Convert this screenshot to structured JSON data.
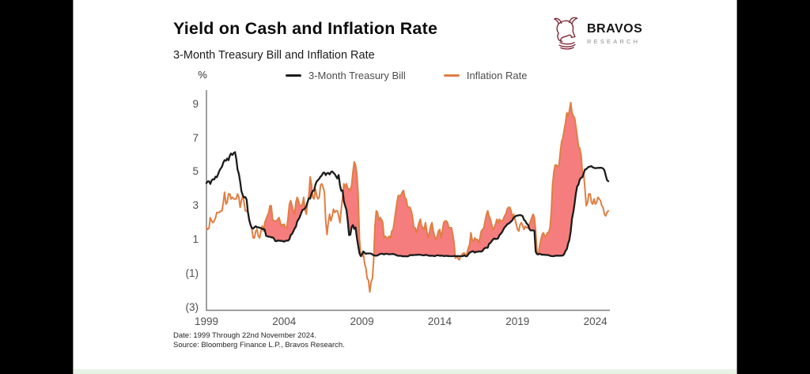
{
  "window": {
    "background": "#000000",
    "slide_background": "#ffffff",
    "bottom_strip_color": "#e9f3e8",
    "edge_line_color": "#9a9a9a"
  },
  "logo": {
    "brand": "BRAVOS",
    "brand_sub": "RESEARCH",
    "icon": "bull-knight-icon",
    "icon_color": "#7e2331",
    "brand_color": "#161616",
    "brand_sub_color": "#8f8f8f"
  },
  "footer": {
    "date_note": "Date: 1999 Through 22nd November 2024.",
    "source_note": "Source: Bloomberg Finance L.P., Bravos Research."
  },
  "chart_data": {
    "type": "line",
    "title": "Yield on Cash and Inflation Rate",
    "subtitle": "3-Month Treasury Bill and Inflation Rate",
    "unit_label": "%",
    "x_start_year": 1999,
    "x_monthly_from": "1999-01",
    "x_monthly_to": "2024-11",
    "x_ticks": [
      1999,
      2004,
      2009,
      2014,
      2019,
      2024
    ],
    "y_ticks": [
      9,
      7,
      5,
      3,
      1,
      -1,
      -3
    ],
    "y_tick_labels": [
      "9",
      "7",
      "5",
      "3",
      "1",
      "(1)",
      "(3)"
    ],
    "ylim": [
      -3.3,
      9.9
    ],
    "grid": "off",
    "legend_position": "top",
    "axis_color": "#878787",
    "tick_color": "#4f4f4f",
    "fill": {
      "rule": "inflation_above_tbill",
      "color": "#f67d7d"
    },
    "series": [
      {
        "name": "3-Month Treasury Bill",
        "color": "#1c1c1c",
        "values": [
          4.34,
          4.44,
          4.44,
          4.29,
          4.5,
          4.57,
          4.55,
          4.72,
          4.68,
          4.86,
          5.07,
          5.2,
          5.32,
          5.55,
          5.69,
          5.66,
          5.79,
          5.69,
          5.96,
          6.09,
          6.0,
          6.11,
          6.17,
          5.77,
          5.15,
          4.88,
          4.42,
          3.87,
          3.62,
          3.49,
          3.51,
          3.36,
          2.64,
          2.16,
          1.87,
          1.69,
          1.65,
          1.73,
          1.79,
          1.72,
          1.73,
          1.7,
          1.68,
          1.62,
          1.63,
          1.58,
          1.23,
          1.19,
          1.17,
          1.17,
          1.13,
          1.13,
          1.07,
          0.92,
          0.9,
          0.95,
          0.94,
          0.92,
          0.93,
          0.9,
          0.88,
          0.93,
          0.94,
          0.94,
          1.02,
          1.27,
          1.33,
          1.48,
          1.65,
          1.76,
          2.07,
          2.19,
          2.33,
          2.54,
          2.74,
          2.78,
          2.84,
          2.97,
          3.22,
          3.44,
          3.42,
          3.71,
          3.88,
          3.89,
          4.24,
          4.43,
          4.51,
          4.6,
          4.72,
          4.79,
          4.95,
          4.96,
          4.81,
          4.92,
          4.94,
          4.85,
          4.98,
          5.03,
          4.94,
          4.87,
          4.73,
          4.61,
          4.82,
          4.2,
          3.89,
          3.9,
          3.27,
          3.0,
          2.75,
          2.12,
          1.26,
          1.29,
          1.73,
          1.86,
          1.63,
          1.72,
          1.13,
          0.67,
          0.19,
          0.03,
          0.13,
          0.3,
          0.22,
          0.16,
          0.18,
          0.18,
          0.18,
          0.17,
          0.12,
          0.07,
          0.05,
          0.05,
          0.06,
          0.11,
          0.15,
          0.16,
          0.16,
          0.12,
          0.16,
          0.16,
          0.15,
          0.13,
          0.14,
          0.14,
          0.15,
          0.13,
          0.1,
          0.06,
          0.04,
          0.04,
          0.04,
          0.02,
          0.01,
          0.02,
          0.01,
          0.01,
          0.03,
          0.09,
          0.08,
          0.08,
          0.09,
          0.09,
          0.1,
          0.1,
          0.11,
          0.1,
          0.09,
          0.07,
          0.07,
          0.1,
          0.09,
          0.06,
          0.04,
          0.05,
          0.04,
          0.04,
          0.02,
          0.05,
          0.07,
          0.07,
          0.04,
          0.05,
          0.05,
          0.03,
          0.03,
          0.04,
          0.03,
          0.03,
          0.02,
          0.02,
          0.02,
          0.03,
          0.03,
          0.02,
          0.03,
          0.02,
          0.02,
          0.02,
          0.03,
          0.07,
          0.02,
          0.02,
          0.13,
          0.23,
          0.26,
          0.31,
          0.3,
          0.23,
          0.28,
          0.27,
          0.3,
          0.3,
          0.29,
          0.33,
          0.45,
          0.51,
          0.52,
          0.52,
          0.75,
          0.8,
          0.9,
          1.0,
          1.07,
          1.03,
          1.04,
          1.07,
          1.25,
          1.34,
          1.43,
          1.59,
          1.73,
          1.79,
          1.9,
          1.94,
          2.0,
          2.07,
          2.15,
          2.29,
          2.35,
          2.41,
          2.42,
          2.44,
          2.45,
          2.43,
          2.38,
          2.17,
          2.1,
          1.95,
          1.89,
          1.65,
          1.54,
          1.54,
          1.54,
          1.52,
          0.29,
          0.14,
          0.13,
          0.16,
          0.13,
          0.1,
          0.11,
          0.1,
          0.09,
          0.09,
          0.08,
          0.04,
          0.03,
          0.02,
          0.02,
          0.04,
          0.05,
          0.05,
          0.04,
          0.05,
          0.05,
          0.06,
          0.15,
          0.33,
          0.44,
          0.76,
          0.98,
          1.49,
          2.23,
          2.63,
          3.13,
          3.72,
          4.15,
          4.25,
          4.54,
          4.65,
          4.69,
          4.92,
          5.14,
          5.16,
          5.25,
          5.3,
          5.32,
          5.34,
          5.27,
          5.24,
          5.22,
          5.23,
          5.24,
          5.24,
          5.25,
          5.24,
          5.2,
          5.1,
          4.8,
          4.52,
          4.45
        ]
      },
      {
        "name": "Inflation Rate",
        "color": "#e07e42",
        "values": [
          1.7,
          1.6,
          1.7,
          2.3,
          2.1,
          2.0,
          2.1,
          2.3,
          2.6,
          2.6,
          2.6,
          2.7,
          2.7,
          3.2,
          3.8,
          3.1,
          3.2,
          3.7,
          3.7,
          3.4,
          3.5,
          3.4,
          3.4,
          3.4,
          3.7,
          3.5,
          2.9,
          3.3,
          3.6,
          3.2,
          2.7,
          2.7,
          2.6,
          2.1,
          1.9,
          1.6,
          1.1,
          1.1,
          1.5,
          1.6,
          1.2,
          1.1,
          1.5,
          1.8,
          1.5,
          2.0,
          2.2,
          2.4,
          2.6,
          3.0,
          3.0,
          2.2,
          2.1,
          2.1,
          2.1,
          2.2,
          2.3,
          2.0,
          1.8,
          1.9,
          1.9,
          1.7,
          1.7,
          2.3,
          3.1,
          3.3,
          3.0,
          2.7,
          2.5,
          3.2,
          3.5,
          3.3,
          3.0,
          3.0,
          3.1,
          3.5,
          2.8,
          2.5,
          3.2,
          3.6,
          4.7,
          4.3,
          3.5,
          3.4,
          4.0,
          3.6,
          3.4,
          3.5,
          4.2,
          4.3,
          4.1,
          3.8,
          2.1,
          1.3,
          2.0,
          2.5,
          2.1,
          2.4,
          2.8,
          2.6,
          2.7,
          2.7,
          2.4,
          2.0,
          2.8,
          3.5,
          4.3,
          4.1,
          4.3,
          4.0,
          4.0,
          3.9,
          4.2,
          5.0,
          5.6,
          5.4,
          4.9,
          3.7,
          1.1,
          0.1,
          0.0,
          0.2,
          -0.4,
          -0.7,
          -1.3,
          -1.4,
          -2.1,
          -1.5,
          -1.3,
          -0.2,
          1.8,
          2.7,
          2.6,
          2.1,
          2.3,
          2.2,
          2.0,
          1.1,
          1.2,
          1.1,
          1.1,
          1.2,
          1.1,
          1.5,
          1.6,
          2.1,
          2.7,
          3.2,
          3.6,
          3.6,
          3.6,
          3.8,
          3.9,
          3.5,
          3.4,
          3.0,
          2.9,
          2.9,
          2.7,
          2.3,
          1.7,
          1.7,
          1.4,
          1.7,
          2.0,
          2.2,
          1.8,
          1.7,
          1.6,
          2.0,
          1.5,
          1.1,
          1.4,
          1.8,
          2.0,
          1.5,
          1.2,
          1.0,
          1.2,
          1.5,
          1.6,
          1.1,
          1.5,
          2.0,
          2.1,
          2.1,
          2.0,
          1.7,
          1.7,
          1.7,
          1.3,
          0.8,
          -0.1,
          0.0,
          -0.1,
          -0.2,
          0.0,
          0.1,
          0.2,
          0.2,
          0.0,
          0.2,
          0.5,
          0.7,
          1.4,
          1.0,
          0.9,
          1.1,
          1.0,
          1.0,
          0.8,
          1.1,
          1.5,
          1.6,
          1.7,
          2.1,
          2.5,
          2.7,
          2.4,
          2.2,
          1.9,
          1.6,
          1.7,
          1.9,
          2.2,
          2.0,
          2.2,
          2.1,
          2.1,
          2.2,
          2.4,
          2.5,
          2.8,
          2.9,
          2.9,
          2.7,
          2.3,
          2.5,
          2.2,
          1.9,
          1.6,
          1.5,
          1.9,
          2.0,
          1.8,
          1.6,
          1.8,
          1.7,
          1.7,
          1.8,
          2.1,
          2.3,
          2.5,
          2.3,
          1.5,
          0.3,
          0.1,
          0.6,
          1.0,
          1.3,
          1.4,
          1.2,
          1.2,
          1.4,
          1.4,
          1.7,
          2.6,
          4.2,
          5.0,
          5.4,
          5.4,
          5.3,
          5.4,
          6.2,
          6.8,
          7.0,
          7.5,
          7.9,
          8.5,
          8.3,
          8.6,
          9.1,
          8.5,
          8.3,
          8.2,
          7.7,
          7.1,
          6.5,
          6.4,
          6.0,
          5.0,
          4.9,
          4.0,
          3.0,
          3.2,
          3.7,
          3.7,
          3.2,
          3.1,
          3.4,
          3.1,
          3.2,
          3.5,
          3.4,
          3.3,
          3.0,
          2.9,
          2.5,
          2.4,
          2.6,
          2.7
        ]
      }
    ]
  }
}
